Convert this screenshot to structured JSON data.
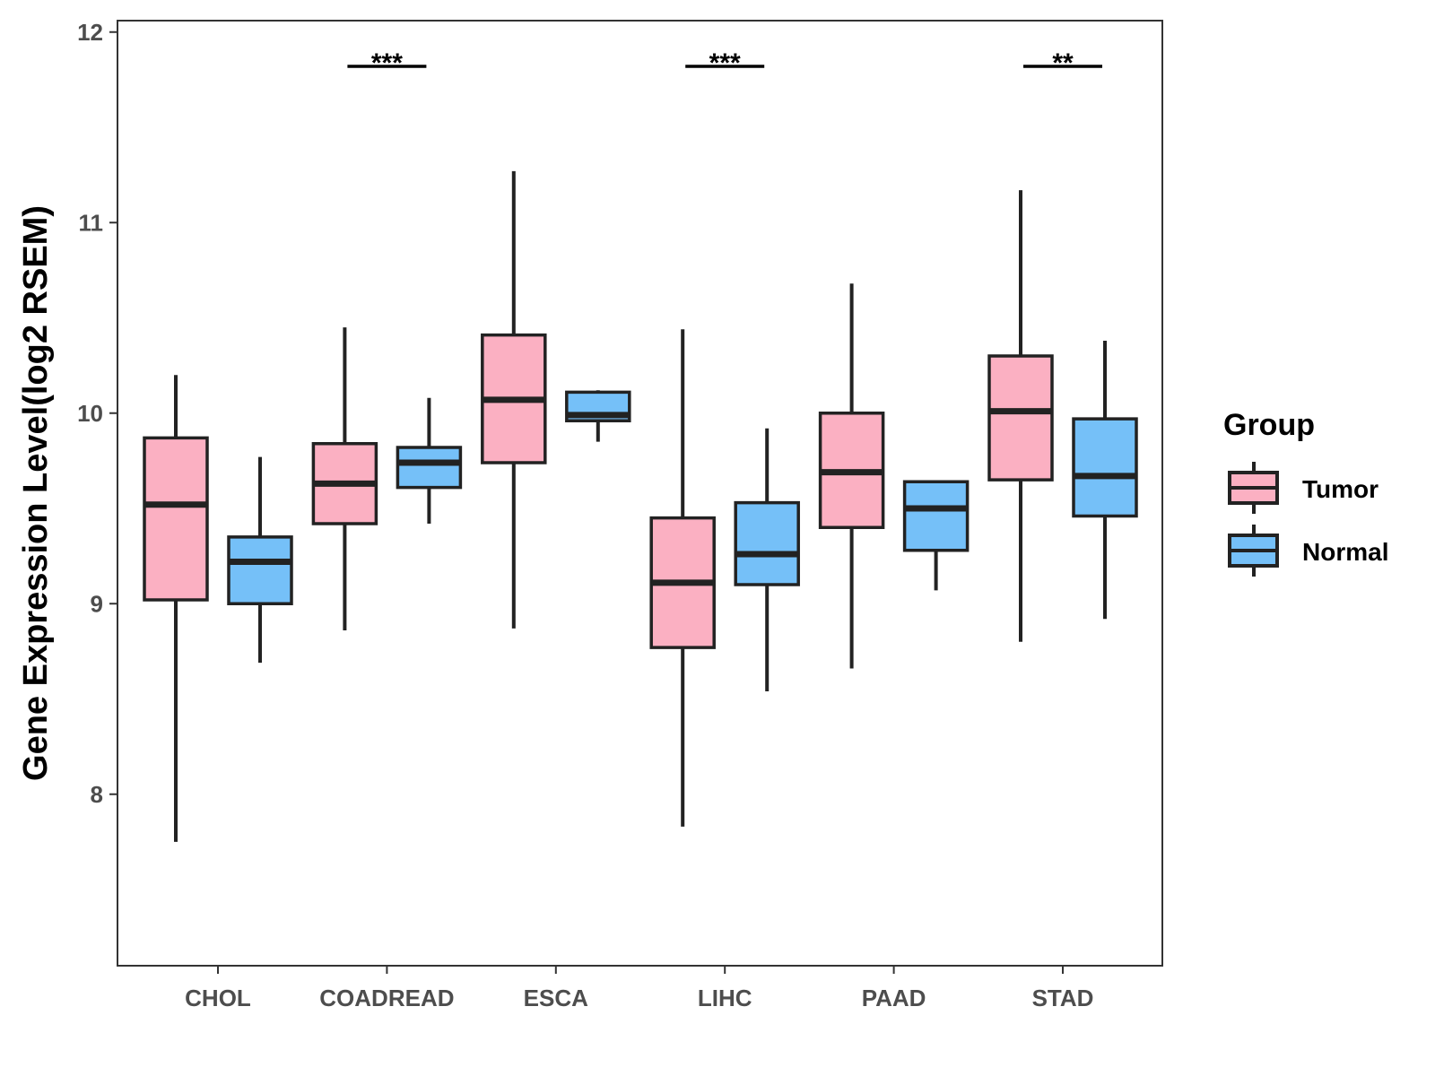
{
  "chart_data": {
    "type": "boxplot",
    "title": "",
    "xlabel": "",
    "ylabel": "Gene Expression Level(log2 RSEM)",
    "ylim": [
      7.1,
      12.06
    ],
    "yticks": [
      8,
      9,
      10,
      11,
      12
    ],
    "categories": [
      "CHOL",
      "COADREAD",
      "ESCA",
      "LIHC",
      "PAAD",
      "STAD"
    ],
    "legend": {
      "title": "Group",
      "position": "right",
      "entries": [
        {
          "name": "Tumor",
          "color": "#FBB0C2"
        },
        {
          "name": "Normal",
          "color": "#75C0F8"
        }
      ]
    },
    "series": [
      {
        "name": "Tumor",
        "color": "#FBB0C2",
        "boxes": [
          {
            "min": 7.75,
            "q1": 9.02,
            "median": 9.52,
            "q3": 9.87,
            "max": 10.2
          },
          {
            "min": 8.86,
            "q1": 9.42,
            "median": 9.63,
            "q3": 9.84,
            "max": 10.45
          },
          {
            "min": 8.87,
            "q1": 9.74,
            "median": 10.07,
            "q3": 10.41,
            "max": 11.27
          },
          {
            "min": 7.83,
            "q1": 8.77,
            "median": 9.11,
            "q3": 9.45,
            "max": 10.44
          },
          {
            "min": 8.66,
            "q1": 9.4,
            "median": 9.69,
            "q3": 10.0,
            "max": 10.68
          },
          {
            "min": 8.8,
            "q1": 9.65,
            "median": 10.01,
            "q3": 10.3,
            "max": 11.17
          }
        ]
      },
      {
        "name": "Normal",
        "color": "#75C0F8",
        "boxes": [
          {
            "min": 8.69,
            "q1": 9.0,
            "median": 9.22,
            "q3": 9.35,
            "max": 9.77
          },
          {
            "min": 9.42,
            "q1": 9.61,
            "median": 9.74,
            "q3": 9.82,
            "max": 10.08
          },
          {
            "min": 9.85,
            "q1": 9.96,
            "median": 9.99,
            "q3": 10.11,
            "max": 10.12
          },
          {
            "min": 8.54,
            "q1": 9.1,
            "median": 9.26,
            "q3": 9.53,
            "max": 9.92
          },
          {
            "min": 9.07,
            "q1": 9.28,
            "median": 9.5,
            "q3": 9.64,
            "max": 9.64
          },
          {
            "min": 8.92,
            "q1": 9.46,
            "median": 9.67,
            "q3": 9.97,
            "max": 10.38
          }
        ]
      }
    ],
    "annotations": [
      {
        "category": "COADREAD",
        "label": "***",
        "y": 11.82
      },
      {
        "category": "LIHC",
        "label": "***",
        "y": 11.82
      },
      {
        "category": "STAD",
        "label": "**",
        "y": 11.82
      }
    ],
    "grid": false
  }
}
